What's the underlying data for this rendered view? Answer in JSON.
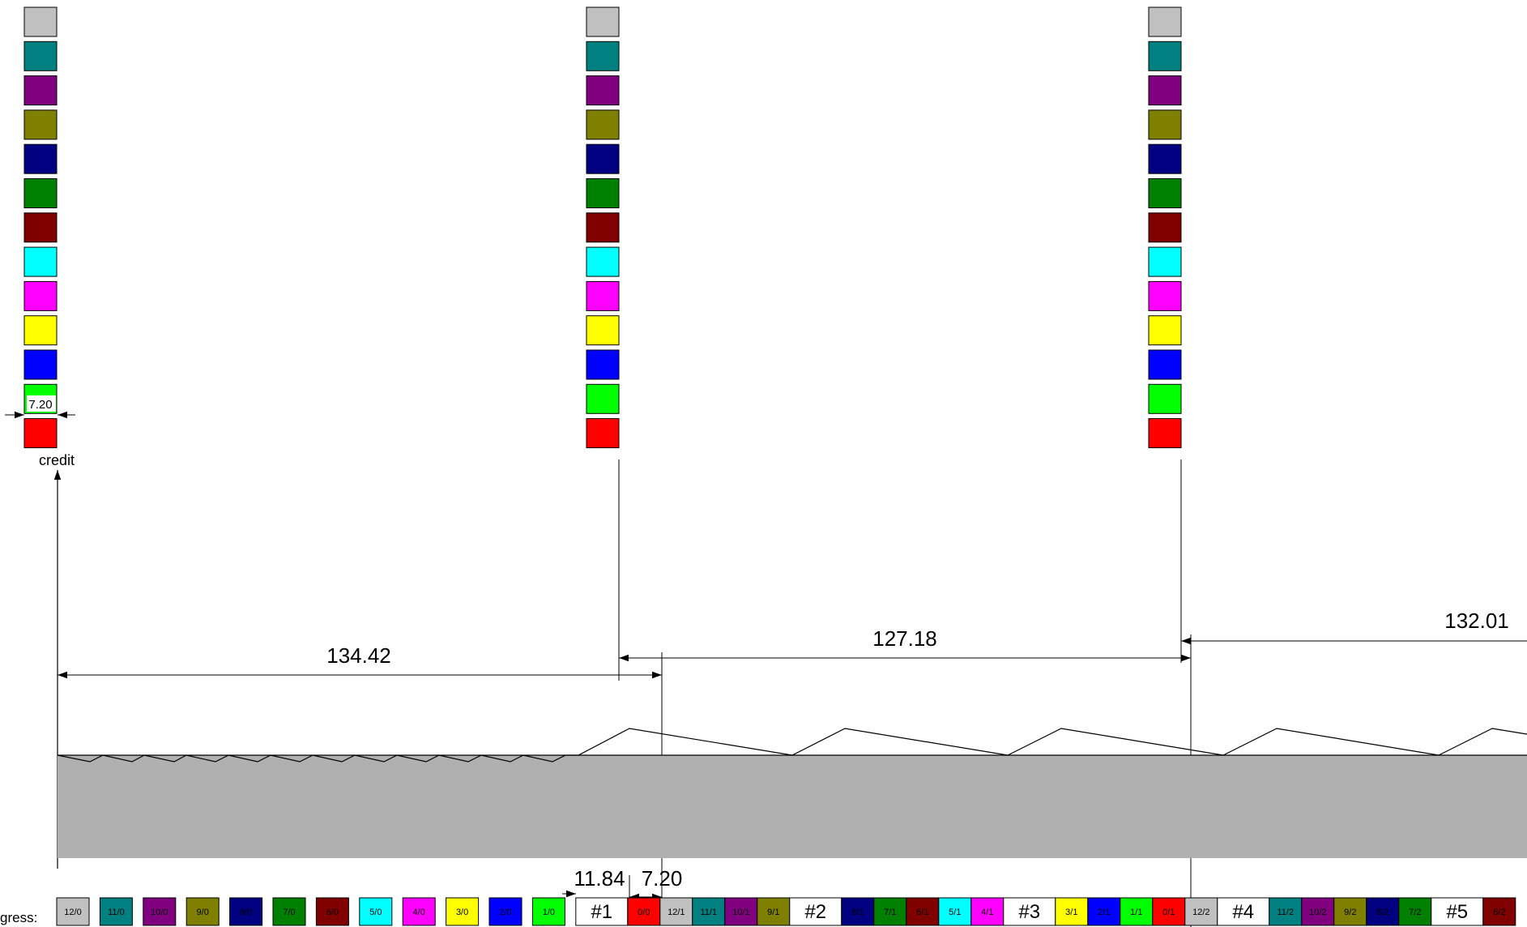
{
  "colors": {
    "gray": "#c0c0c0",
    "teal": "#008080",
    "purple": "#800080",
    "olive": "#808000",
    "navy": "#000080",
    "green": "#008000",
    "maroon": "#800000",
    "cyan": "#00ffff",
    "magenta": "#ff00ff",
    "yellow": "#ffff00",
    "blue": "#0000ff",
    "lime": "#00ff00",
    "red": "#ff0000",
    "ground": "#b0b0b0",
    "stroke": "#000000",
    "white": "#ffffff"
  },
  "stack_color_order": [
    "gray",
    "teal",
    "purple",
    "olive",
    "navy",
    "green",
    "maroon",
    "cyan",
    "magenta",
    "yellow",
    "blue",
    "lime",
    "red"
  ],
  "stacks_count": 3,
  "credit_label": "credit",
  "credit_width_label": "7.20",
  "dimensions": {
    "span_1": "134.42",
    "span_2": "127.18",
    "span_3": "132.01",
    "gap_a": "11.84",
    "gap_b": "7.20"
  },
  "progress": {
    "label": "gress:",
    "cells": [
      {
        "text": "12/0",
        "color": "gray"
      },
      {
        "text": "11/0",
        "color": "teal"
      },
      {
        "text": "10/0",
        "color": "purple"
      },
      {
        "text": "9/0",
        "color": "olive"
      },
      {
        "text": "8/0",
        "color": "navy"
      },
      {
        "text": "7/0",
        "color": "green"
      },
      {
        "text": "6/0",
        "color": "maroon"
      },
      {
        "text": "5/0",
        "color": "cyan"
      },
      {
        "text": "4/0",
        "color": "magenta"
      },
      {
        "text": "3/0",
        "color": "yellow"
      },
      {
        "text": "2/0",
        "color": "blue"
      },
      {
        "text": "1/0",
        "color": "lime"
      },
      {
        "text": "#1",
        "color": "white",
        "big": true
      },
      {
        "text": "0/0",
        "color": "red"
      },
      {
        "text": "12/1",
        "color": "gray"
      },
      {
        "text": "11/1",
        "color": "teal"
      },
      {
        "text": "10/1",
        "color": "purple"
      },
      {
        "text": "9/1",
        "color": "olive"
      },
      {
        "text": "#2",
        "color": "white",
        "big": true
      },
      {
        "text": "8/1",
        "color": "navy"
      },
      {
        "text": "7/1",
        "color": "green"
      },
      {
        "text": "6/1",
        "color": "maroon"
      },
      {
        "text": "5/1",
        "color": "cyan"
      },
      {
        "text": "4/1",
        "color": "magenta"
      },
      {
        "text": "#3",
        "color": "white",
        "big": true
      },
      {
        "text": "3/1",
        "color": "yellow"
      },
      {
        "text": "2/1",
        "color": "blue"
      },
      {
        "text": "1/1",
        "color": "lime"
      },
      {
        "text": "0/1",
        "color": "red"
      },
      {
        "text": "12/2",
        "color": "gray"
      },
      {
        "text": "#4",
        "color": "white",
        "big": true
      },
      {
        "text": "11/2",
        "color": "teal"
      },
      {
        "text": "10/2",
        "color": "purple"
      },
      {
        "text": "9/2",
        "color": "olive"
      },
      {
        "text": "8/2",
        "color": "navy"
      },
      {
        "text": "7/2",
        "color": "green"
      },
      {
        "text": "#5",
        "color": "white",
        "big": true
      },
      {
        "text": "6/2",
        "color": "maroon"
      }
    ]
  }
}
